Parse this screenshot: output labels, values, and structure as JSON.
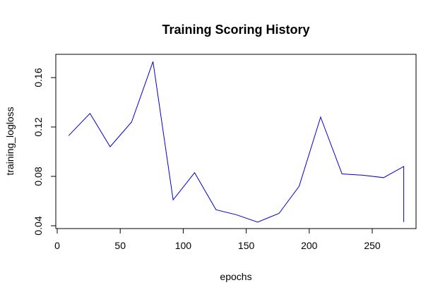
{
  "chart_data": {
    "type": "line",
    "title": "Training Scoring History",
    "xlabel": "epochs",
    "ylabel": "training_logloss",
    "xlim": [
      0,
      280
    ],
    "ylim": [
      0.04,
      0.175
    ],
    "x_ticks": [
      0,
      50,
      100,
      150,
      200,
      250
    ],
    "y_ticks": [
      0.04,
      0.08,
      0.12,
      0.16
    ],
    "x_tick_labels": [
      "0",
      "50",
      "100",
      "150",
      "200",
      "250"
    ],
    "y_tick_labels": [
      "0.04",
      "0.08",
      "0.12",
      "0.16"
    ],
    "grid": false,
    "legend": "none",
    "series_color": "#0000cc",
    "series": [
      {
        "x": [
          9,
          26,
          42,
          59,
          76,
          92,
          109,
          126,
          142,
          159,
          176,
          192,
          209,
          226,
          242,
          259,
          275,
          275
        ],
        "y": [
          0.113,
          0.131,
          0.104,
          0.124,
          0.173,
          0.061,
          0.083,
          0.053,
          0.049,
          0.043,
          0.05,
          0.072,
          0.128,
          0.082,
          0.081,
          0.079,
          0.088,
          0.043
        ]
      }
    ]
  }
}
